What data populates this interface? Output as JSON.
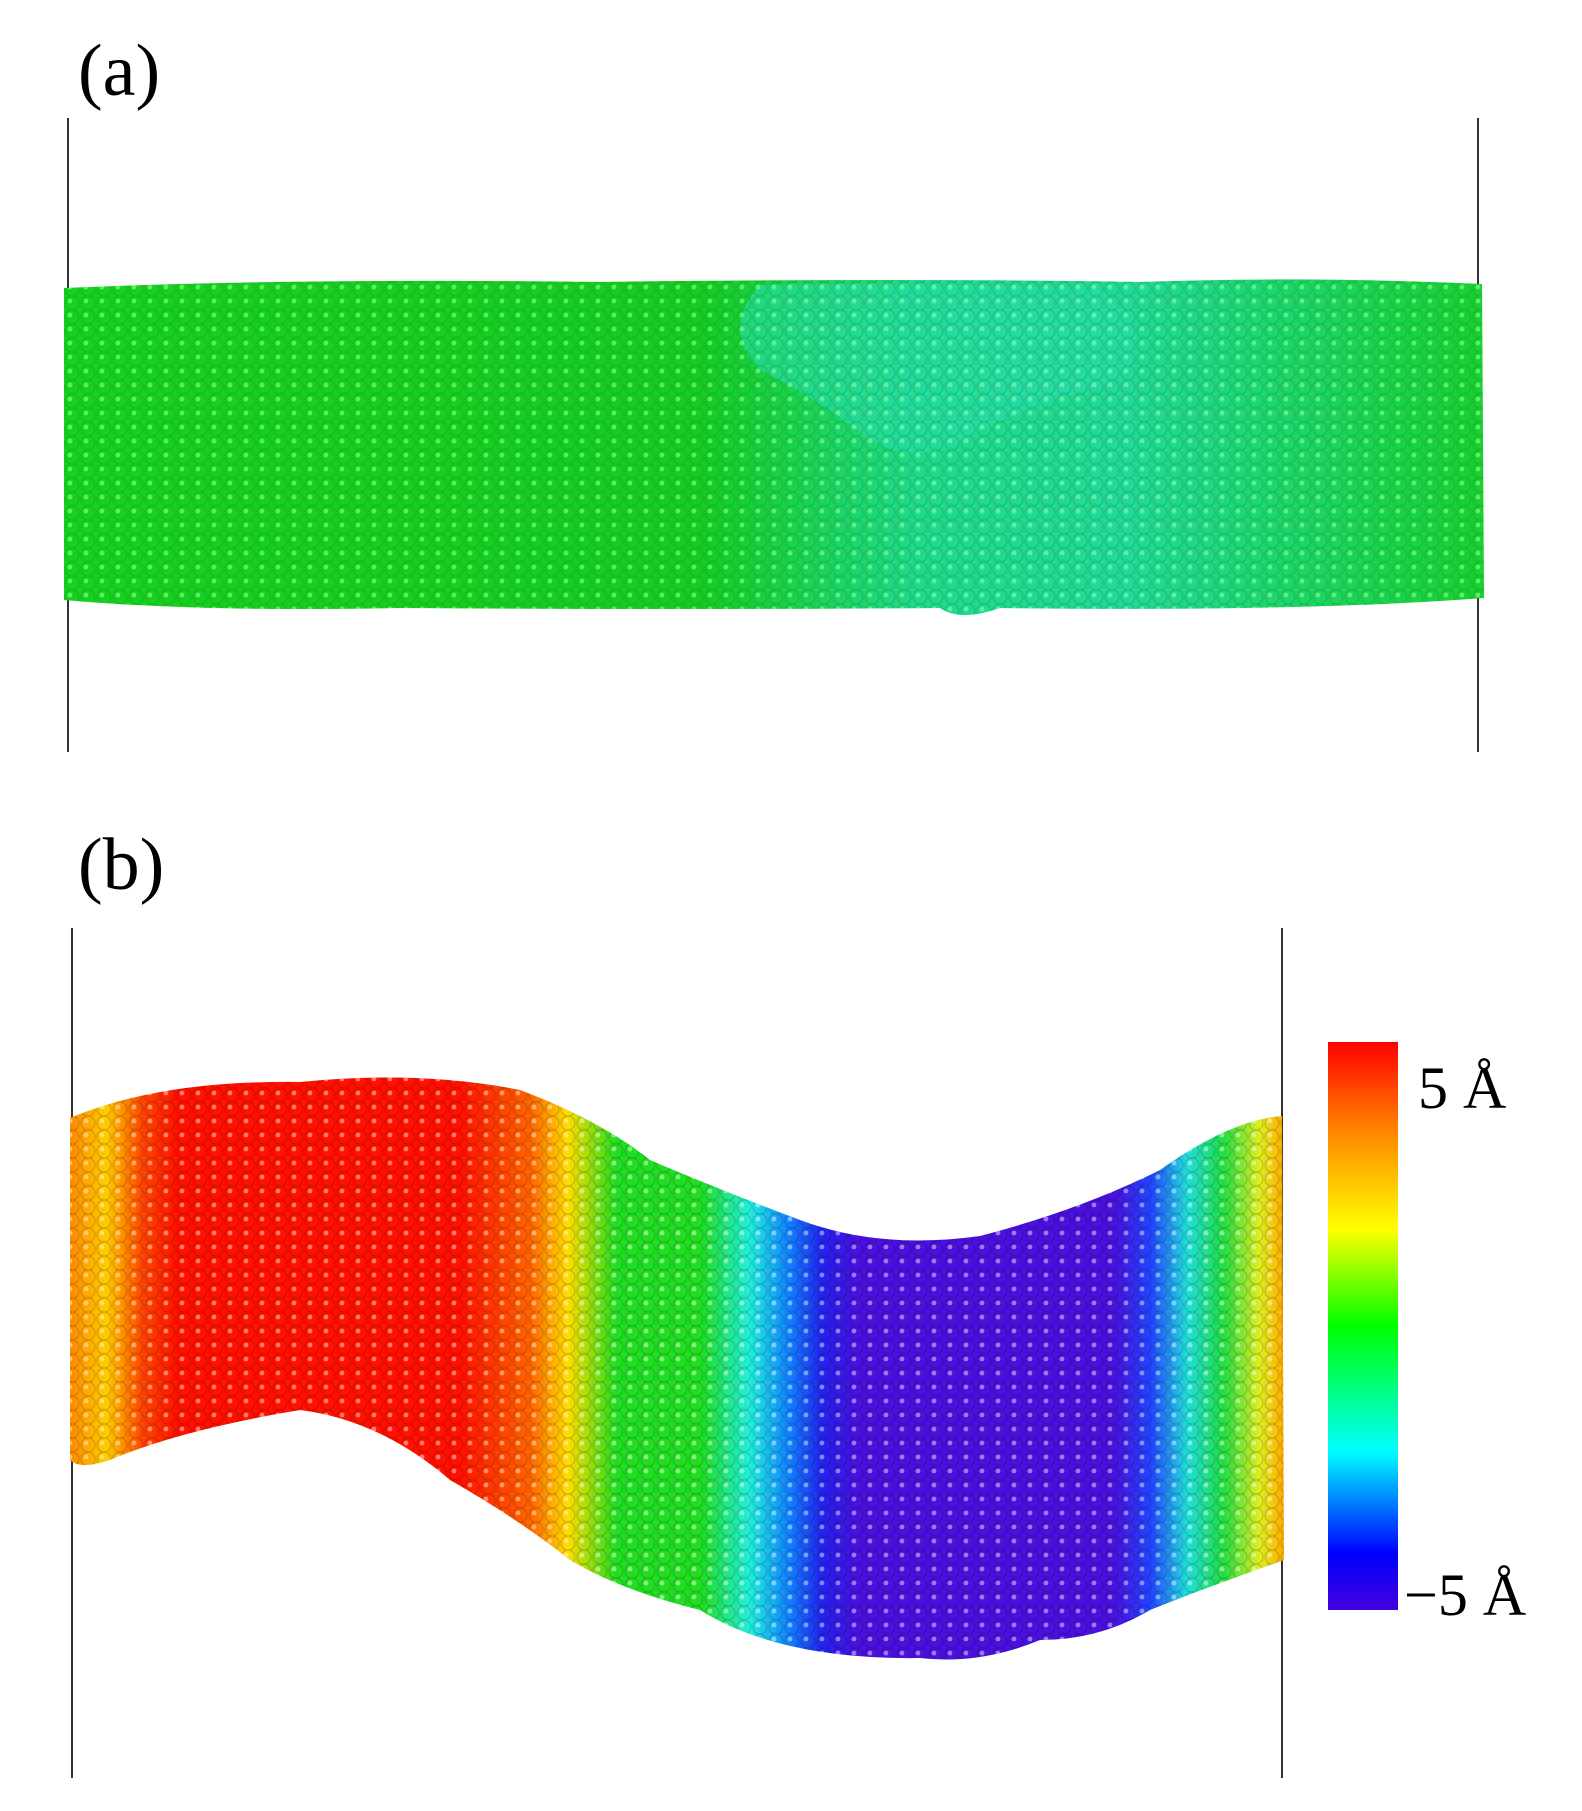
{
  "panels": [
    {
      "label": "(a)"
    },
    {
      "label": "(b)"
    }
  ],
  "colorbar": {
    "max_label": "5 Å",
    "min_label": "−5 Å",
    "colors": [
      "#ff0000",
      "#ff8800",
      "#ffff00",
      "#00ff00",
      "#00ffff",
      "#0000ff",
      "#4400dd"
    ]
  }
}
